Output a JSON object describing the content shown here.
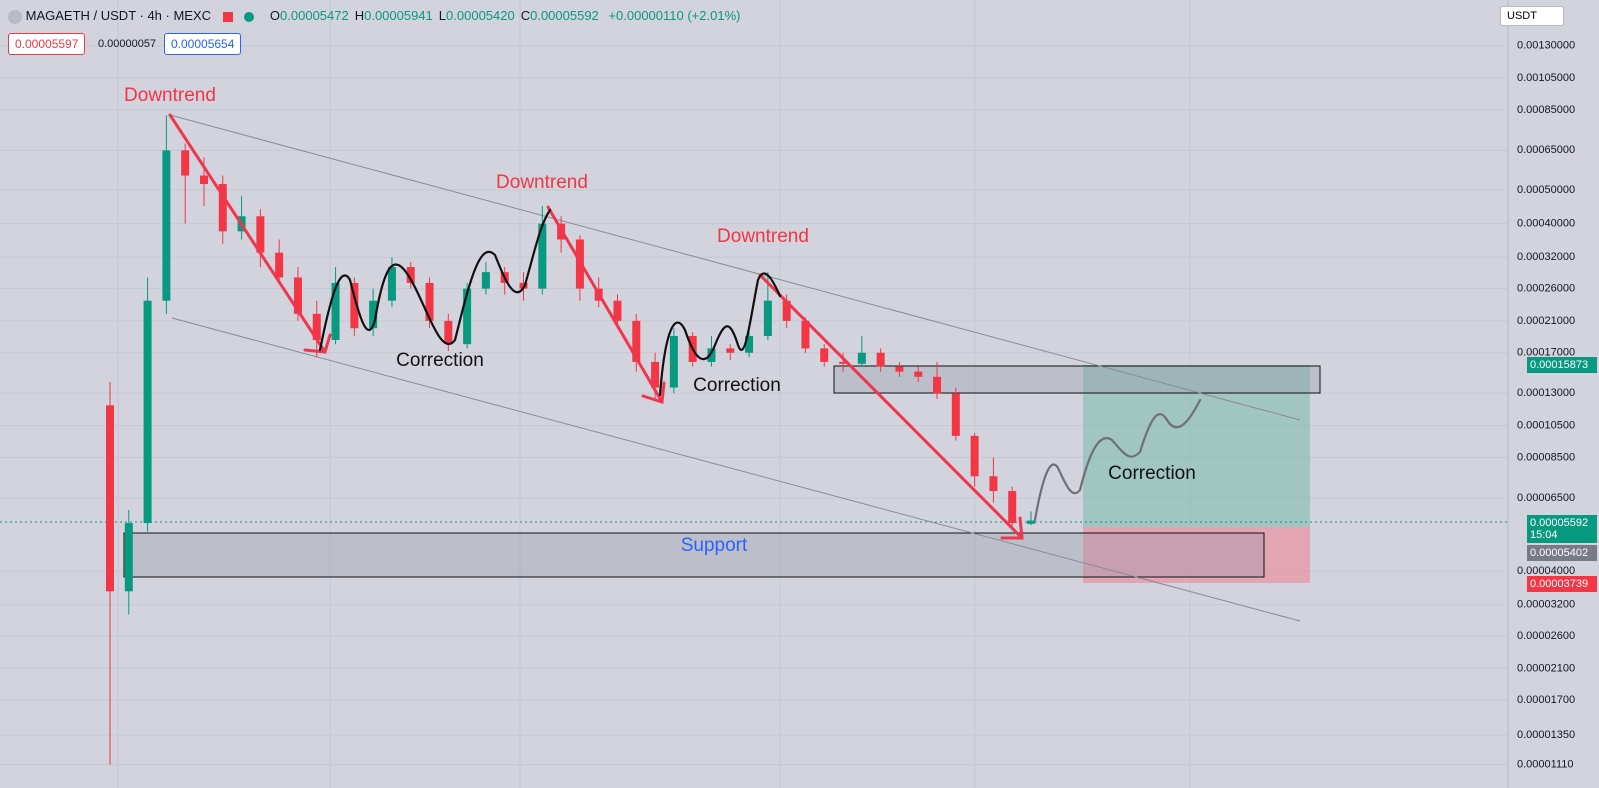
{
  "header": {
    "symbol": "MAGAETH / USDT · 4h · MEXC",
    "ohlc": [
      {
        "key": "O",
        "value": "0.00005472"
      },
      {
        "key": "H",
        "value": "0.00005941"
      },
      {
        "key": "L",
        "value": "0.00005420"
      },
      {
        "key": "C",
        "value": "0.00005592"
      }
    ],
    "change": "+0.00000110 (+2.01%)",
    "currency": "USDT"
  },
  "order_panel": {
    "sell": "0.00005597",
    "spread": "0.00000057",
    "buy": "0.00005654"
  },
  "chart": {
    "type": "candlestick",
    "log_scale": true,
    "ylim": [
      1.05e-05,
      0.00176
    ],
    "yticks": [
      {
        "value": 0.0013,
        "label": "0.00130000"
      },
      {
        "value": 0.00105,
        "label": "0.00105000"
      },
      {
        "value": 0.00085,
        "label": "0.00085000"
      },
      {
        "value": 0.00065,
        "label": "0.00065000"
      },
      {
        "value": 0.0005,
        "label": "0.00050000"
      },
      {
        "value": 0.0004,
        "label": "0.00040000"
      },
      {
        "value": 0.00032,
        "label": "0.00032000"
      },
      {
        "value": 0.00026,
        "label": "0.00026000"
      },
      {
        "value": 0.00021,
        "label": "0.00021000"
      },
      {
        "value": 0.00017,
        "label": "0.00017000"
      },
      {
        "value": 0.00013,
        "label": "0.00013000"
      },
      {
        "value": 0.000105,
        "label": "0.00010500"
      },
      {
        "value": 8.5e-05,
        "label": "0.00008500"
      },
      {
        "value": 6.5e-05,
        "label": "0.00006500"
      },
      {
        "value": 4e-05,
        "label": "0.00004000"
      },
      {
        "value": 3.2e-05,
        "label": "0.00003200"
      },
      {
        "value": 2.6e-05,
        "label": "0.00002600"
      },
      {
        "value": 2.1e-05,
        "label": "0.00002100"
      },
      {
        "value": 1.7e-05,
        "label": "0.00001700"
      },
      {
        "value": 1.35e-05,
        "label": "0.00001350"
      },
      {
        "value": 1.11e-05,
        "label": "0.00001110"
      }
    ],
    "up_color": "#089981",
    "down_color": "#f23645",
    "open": [
      0.00012,
      3.5e-05,
      5.5e-05,
      0.00024,
      0.00065,
      0.00055,
      0.00052,
      0.00038,
      0.00042,
      0.00033,
      0.00028,
      0.00022,
      0.000185,
      0.00027,
      0.0002,
      0.00024,
      0.0003,
      0.00027,
      0.00021,
      0.00018,
      0.00026,
      0.00029,
      0.00027,
      0.00026,
      0.0004,
      0.00036,
      0.00026,
      0.00024,
      0.00021,
      0.00016,
      0.000135,
      0.00019,
      0.00016,
      0.000175,
      0.00017,
      0.00019,
      0.00024,
      0.00021,
      0.000175,
      0.00016,
      0.000158,
      0.00017,
      0.000155,
      0.00015,
      0.000145,
      0.00013,
      9.8e-05,
      7.5e-05,
      6.8e-05,
      5.472e-05
    ],
    "high": [
      0.00014,
      6e-05,
      0.00028,
      0.00082,
      0.00068,
      0.00062,
      0.00055,
      0.00048,
      0.00044,
      0.00036,
      0.0003,
      0.00024,
      0.0003,
      0.00028,
      0.00026,
      0.00032,
      0.00031,
      0.00028,
      0.00022,
      0.00027,
      0.00031,
      0.0003,
      0.00029,
      0.00045,
      0.00042,
      0.00037,
      0.00028,
      0.00025,
      0.00022,
      0.00017,
      0.0002,
      0.000195,
      0.00019,
      0.00018,
      0.0002,
      0.00029,
      0.00025,
      0.000215,
      0.00018,
      0.00017,
      0.00019,
      0.000175,
      0.00016,
      0.000155,
      0.00016,
      0.000135,
      0.0001,
      8.5e-05,
      7e-05,
      5.941e-05
    ],
    "low": [
      1.11e-05,
      3e-05,
      5.2e-05,
      0.00022,
      0.0004,
      0.00045,
      0.00035,
      0.00036,
      0.0003,
      0.00027,
      0.00021,
      0.000165,
      0.00018,
      0.00019,
      0.00019,
      0.00023,
      0.00026,
      0.0002,
      0.000172,
      0.000175,
      0.00025,
      0.00025,
      0.00024,
      0.00025,
      0.00033,
      0.00024,
      0.00023,
      0.0002,
      0.00015,
      0.000125,
      0.00013,
      0.000155,
      0.000155,
      0.000162,
      0.000165,
      0.000185,
      0.0002,
      0.00017,
      0.000155,
      0.00015,
      0.000155,
      0.00015,
      0.000145,
      0.00014,
      0.000125,
      9.5e-05,
      7e-05,
      6.3e-05,
      5.25e-05,
      5.42e-05
    ],
    "close": [
      3.5e-05,
      5.5e-05,
      0.00024,
      0.00065,
      0.00055,
      0.00052,
      0.00038,
      0.00042,
      0.00033,
      0.00028,
      0.00022,
      0.000185,
      0.00027,
      0.0002,
      0.00024,
      0.0003,
      0.00027,
      0.00021,
      0.00018,
      0.00026,
      0.00029,
      0.00027,
      0.00026,
      0.0004,
      0.00036,
      0.00026,
      0.00024,
      0.00021,
      0.00016,
      0.000135,
      0.00019,
      0.00016,
      0.000175,
      0.00017,
      0.00019,
      0.00024,
      0.00021,
      0.000175,
      0.00016,
      0.000158,
      0.00017,
      0.000155,
      0.00015,
      0.000145,
      0.00013,
      9.8e-05,
      7.5e-05,
      6.8e-05,
      5.5e-05,
      5.592e-05
    ]
  },
  "price_labels": {
    "target": "0.00015873",
    "last": "0.00005592",
    "countdown": "15:04",
    "low": "0.00005402",
    "stop": "0.00003739"
  },
  "annotations": {
    "downtrend_1": "Downtrend",
    "downtrend_2": "Downtrend",
    "downtrend_3": "Downtrend",
    "correction_1": "Correction",
    "correction_2": "Correction",
    "correction_3": "Correction",
    "support": "Support"
  }
}
